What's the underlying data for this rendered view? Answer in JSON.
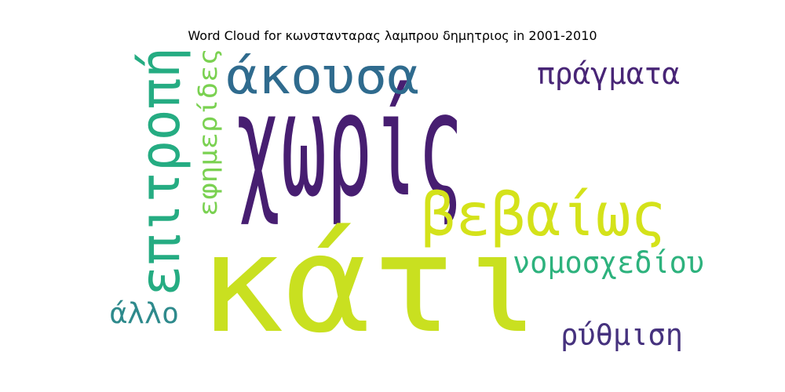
{
  "chart_data": {
    "type": "wordcloud",
    "title": "Word Cloud for κωνστανταρας λαμπρου δημητριος in 2001-2010",
    "words": [
      {
        "text": "χωρίς",
        "color": "#471e71"
      },
      {
        "text": "κάτι",
        "color": "#c9e020"
      },
      {
        "text": "άκουσα",
        "color": "#2f6b8e"
      },
      {
        "text": "επιτροπή",
        "color": "#25ac82"
      },
      {
        "text": "βεβαίως",
        "color": "#d4e21a"
      },
      {
        "text": "πράγματα",
        "color": "#482576"
      },
      {
        "text": "εφημερίδες",
        "color": "#7ad151"
      },
      {
        "text": "νομοσχεδίου",
        "color": "#2db27d"
      },
      {
        "text": "άλλο",
        "color": "#2e8a8c"
      },
      {
        "text": "ρύθμιση",
        "color": "#46327e"
      }
    ]
  }
}
